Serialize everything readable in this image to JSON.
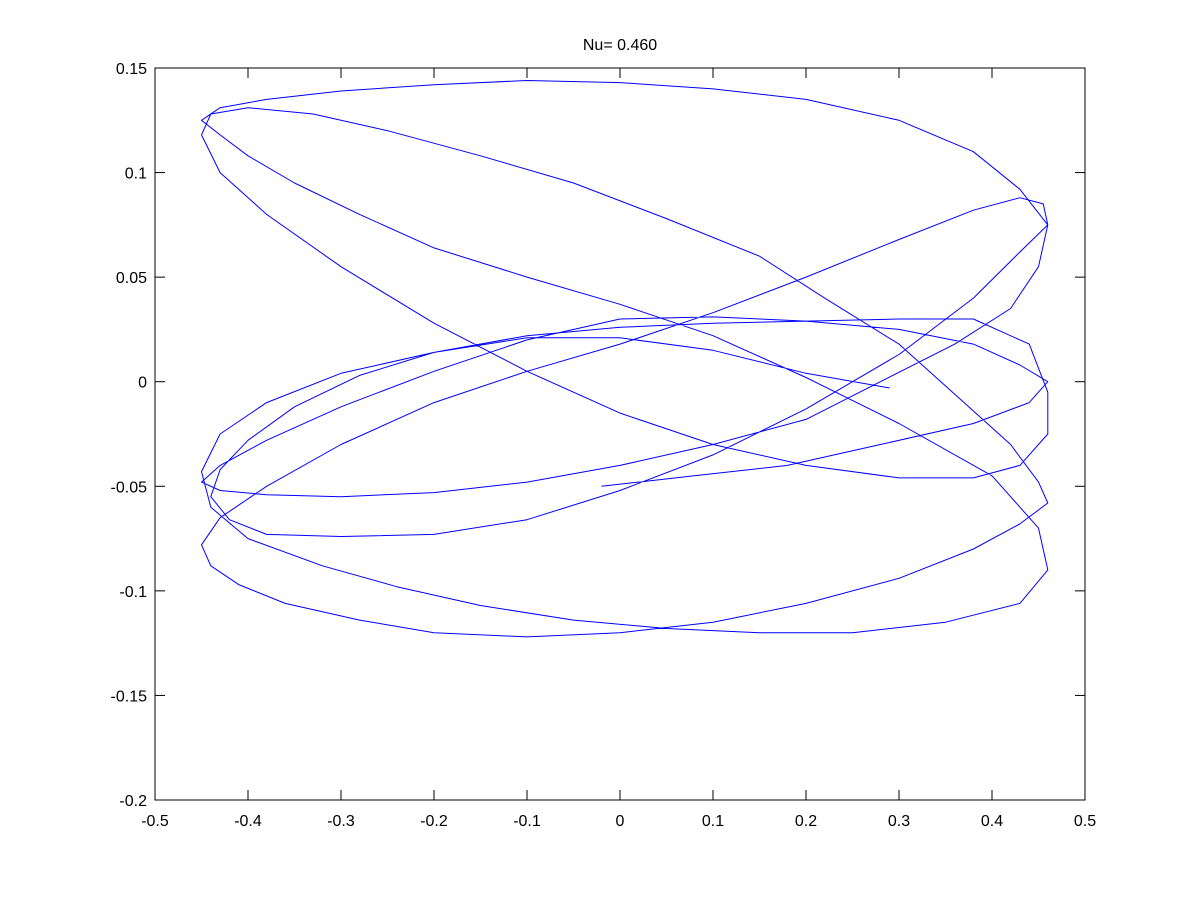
{
  "chart_data": {
    "type": "line",
    "title": "Nu= 0.460",
    "xlabel": "",
    "ylabel": "",
    "xlim": [
      -0.5,
      0.5
    ],
    "ylim": [
      -0.2,
      0.15
    ],
    "xticks": [
      -0.5,
      -0.4,
      -0.3,
      -0.2,
      -0.1,
      0,
      0.1,
      0.2,
      0.3,
      0.4,
      0.5
    ],
    "xtick_labels": [
      "-0.5",
      "-0.4",
      "-0.3",
      "-0.2",
      "-0.1",
      "0",
      "0.1",
      "0.2",
      "0.3",
      "0.4",
      "0.5"
    ],
    "yticks": [
      -0.2,
      -0.15,
      -0.1,
      -0.05,
      0,
      0.05,
      0.1,
      0.15
    ],
    "ytick_labels": [
      "-0.2",
      "-0.15",
      "-0.1",
      "-0.05",
      "0",
      "0.05",
      "0.1",
      "0.15"
    ],
    "grid": false,
    "legend": "none",
    "line_color": "#0000ff",
    "axis_color": "#000000",
    "series": [
      {
        "x": [
          0.29,
          0.2,
          0.1,
          0.0,
          -0.1,
          -0.2,
          -0.28,
          -0.35,
          -0.4,
          -0.43,
          -0.44,
          -0.42,
          -0.38,
          -0.3,
          -0.2,
          -0.1,
          0.0,
          0.1,
          0.2,
          0.3,
          0.38,
          0.43,
          0.46,
          0.455,
          0.43,
          0.38,
          0.3,
          0.2,
          0.1,
          0.0,
          -0.1,
          -0.2,
          -0.3,
          -0.38,
          -0.43,
          -0.45,
          -0.44,
          -0.41,
          -0.36,
          -0.28,
          -0.2,
          -0.1,
          0.0,
          0.1,
          0.2,
          0.3,
          0.38,
          0.43,
          0.46,
          0.45,
          0.42,
          0.36,
          0.3,
          0.22,
          0.15,
          0.05,
          -0.05,
          -0.15,
          -0.25,
          -0.33,
          -0.4,
          -0.44,
          -0.45,
          -0.43,
          -0.38,
          -0.3,
          -0.2,
          -0.1,
          0.0,
          0.1,
          0.2,
          0.3,
          0.38,
          0.43,
          0.46,
          0.46,
          0.44,
          0.38,
          0.3,
          0.2,
          0.1,
          0.0,
          -0.1,
          -0.2,
          -0.3,
          -0.38,
          -0.43,
          -0.45,
          -0.44,
          -0.4,
          -0.32,
          -0.24,
          -0.15,
          -0.05,
          0.05,
          0.15,
          0.25,
          0.35,
          0.43,
          0.46,
          0.45,
          0.4,
          0.3,
          0.2,
          0.1,
          0.0,
          -0.1,
          -0.2,
          -0.28,
          -0.35,
          -0.4,
          -0.43,
          -0.45,
          -0.43,
          -0.38,
          -0.3,
          -0.2,
          -0.1,
          0.0,
          0.1,
          0.2,
          0.3,
          0.38,
          0.43,
          0.46,
          0.45,
          0.42,
          0.36,
          0.28,
          0.2,
          0.1,
          0.0,
          -0.1,
          -0.2,
          -0.3,
          -0.38,
          -0.43,
          -0.45,
          -0.43,
          -0.38,
          -0.3,
          -0.2,
          -0.1,
          0.0,
          0.1,
          0.2,
          0.3,
          0.38,
          0.43,
          0.46,
          0.44,
          0.38,
          0.28,
          0.18,
          0.08,
          -0.02
        ],
        "y": [
          -0.003,
          0.004,
          0.015,
          0.021,
          0.021,
          0.014,
          0.003,
          -0.012,
          -0.028,
          -0.042,
          -0.055,
          -0.066,
          -0.073,
          -0.074,
          -0.073,
          -0.066,
          -0.052,
          -0.035,
          -0.013,
          0.013,
          0.04,
          0.062,
          0.075,
          0.085,
          0.088,
          0.082,
          0.068,
          0.05,
          0.033,
          0.018,
          0.005,
          -0.01,
          -0.03,
          -0.05,
          -0.065,
          -0.078,
          -0.088,
          -0.097,
          -0.106,
          -0.114,
          -0.12,
          -0.122,
          -0.12,
          -0.115,
          -0.106,
          -0.094,
          -0.08,
          -0.068,
          -0.058,
          -0.048,
          -0.03,
          -0.006,
          0.018,
          0.04,
          0.06,
          0.078,
          0.095,
          0.108,
          0.12,
          0.128,
          0.131,
          0.128,
          0.118,
          0.1,
          0.08,
          0.055,
          0.028,
          0.005,
          -0.015,
          -0.03,
          -0.04,
          -0.046,
          -0.046,
          -0.04,
          -0.025,
          -0.005,
          0.018,
          0.03,
          0.03,
          0.029,
          0.028,
          0.026,
          0.022,
          0.014,
          0.004,
          -0.01,
          -0.025,
          -0.043,
          -0.06,
          -0.075,
          -0.088,
          -0.098,
          -0.107,
          -0.114,
          -0.118,
          -0.12,
          -0.12,
          -0.115,
          -0.106,
          -0.09,
          -0.07,
          -0.045,
          -0.02,
          0.002,
          0.022,
          0.037,
          0.05,
          0.064,
          0.08,
          0.095,
          0.108,
          0.118,
          0.125,
          0.131,
          0.135,
          0.139,
          0.142,
          0.144,
          0.143,
          0.14,
          0.135,
          0.125,
          0.11,
          0.092,
          0.075,
          0.055,
          0.035,
          0.018,
          0.0,
          -0.018,
          -0.03,
          -0.04,
          -0.048,
          -0.053,
          -0.055,
          -0.054,
          -0.052,
          -0.048,
          -0.04,
          -0.028,
          -0.012,
          0.005,
          0.02,
          0.03,
          0.031,
          0.029,
          0.025,
          0.018,
          0.008,
          0.0,
          -0.01,
          -0.02,
          -0.03,
          -0.04,
          -0.045,
          -0.05
        ]
      }
    ]
  }
}
